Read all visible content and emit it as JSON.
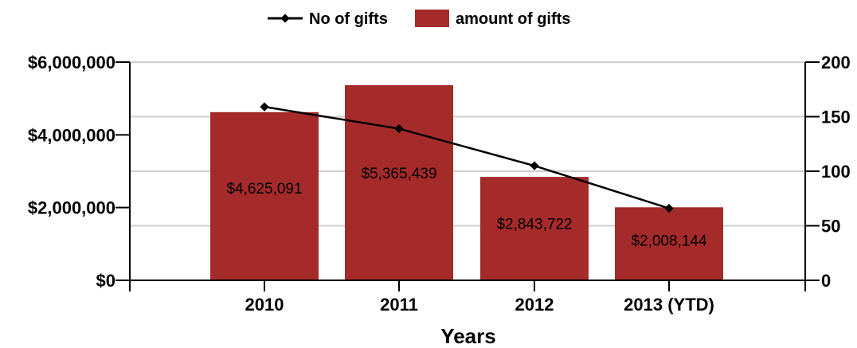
{
  "chart_data": {
    "type": "bar",
    "xlabel": "Years",
    "categories": [
      "2010",
      "2011",
      "2012",
      "2013 (YTD)"
    ],
    "series": [
      {
        "name": "amount of gifts",
        "type": "bar",
        "axis": "left",
        "color": "#A52A2A",
        "values": [
          4625091,
          5365439,
          2843722,
          2008144
        ],
        "data_labels": [
          "$4,625,091",
          "$5,365,439",
          "$2,843,722",
          "$2,008,144"
        ]
      },
      {
        "name": "No of gifts",
        "type": "line",
        "axis": "right",
        "color": "#000000",
        "marker": "diamond",
        "values": [
          159,
          139,
          105,
          66
        ]
      }
    ],
    "ylim_left": [
      0,
      6000000
    ],
    "yticks_left": [
      0,
      2000000,
      4000000,
      6000000
    ],
    "ytick_labels_left": [
      "$0",
      "$2,000,000",
      "$4,000,000",
      "$6,000,000"
    ],
    "ylim_right": [
      0,
      200
    ],
    "yticks_right": [
      0,
      50,
      100,
      150,
      200
    ],
    "ytick_labels_right": [
      "0",
      "50",
      "100",
      "150",
      "200"
    ],
    "grid": true,
    "legend_position": "top"
  }
}
